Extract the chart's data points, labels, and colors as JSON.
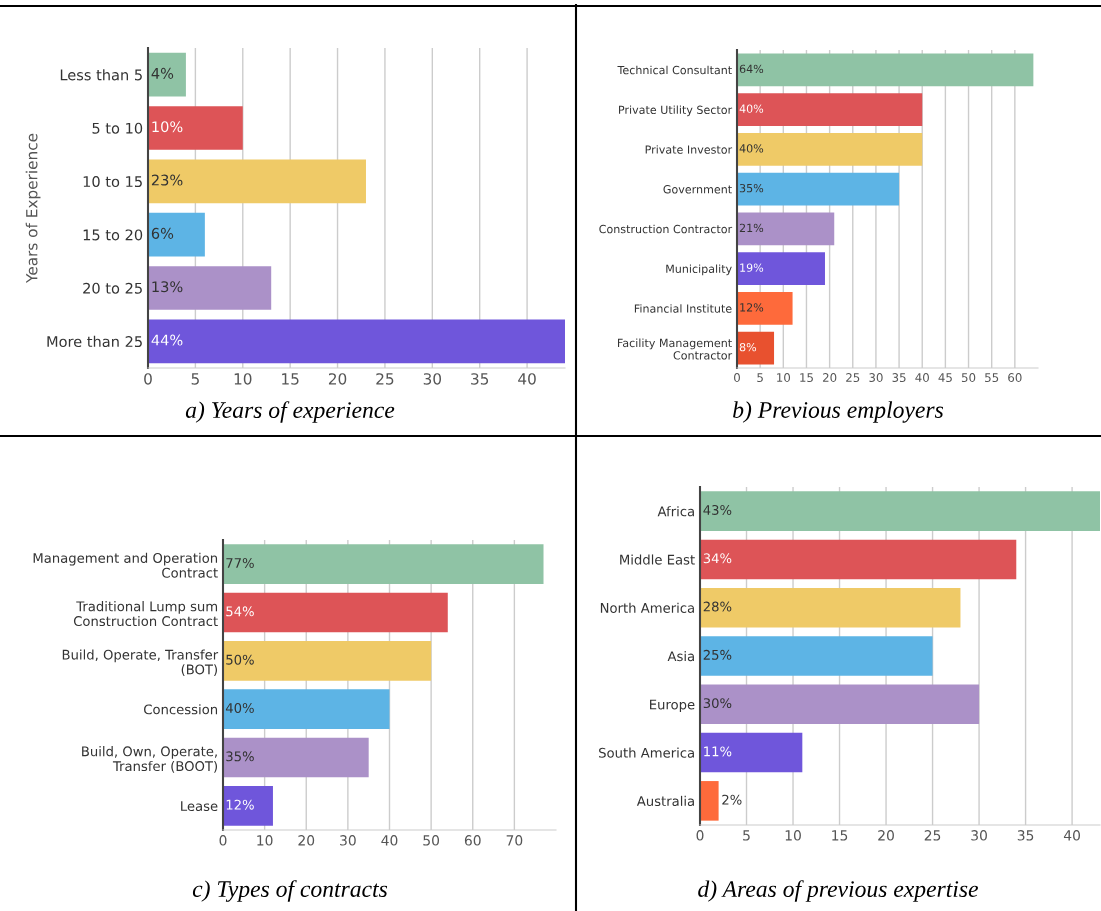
{
  "chart_data": [
    {
      "type": "bar",
      "orientation": "horizontal",
      "title": "a) Years of experience",
      "ylabel": "Years of Experience",
      "categories": [
        "Less than 5",
        "5 to 10",
        "10 to 15",
        "15 to 20",
        "20 to 25",
        "More than 25"
      ],
      "values": [
        4,
        10,
        23,
        6,
        13,
        44
      ],
      "value_labels": [
        "4%",
        "10%",
        "23%",
        "6%",
        "13%",
        "44%"
      ],
      "colors": [
        "#8fc3a5",
        "#dd5457",
        "#efca67",
        "#5db4e5",
        "#ab91c8",
        "#6f56db"
      ],
      "xlim": [
        0,
        44
      ],
      "xticks": [
        0,
        5,
        10,
        15,
        20,
        25,
        30,
        35,
        40
      ],
      "grid": "x",
      "legend": false
    },
    {
      "type": "bar",
      "orientation": "horizontal",
      "title": "b) Previous employers",
      "categories": [
        "Technical Consultant",
        "Private Utility Sector",
        "Private Investor",
        "Government",
        "Construction Contractor",
        "Municipality",
        "Financial Institute",
        "Facility Management\nContractor"
      ],
      "values": [
        64,
        40,
        40,
        35,
        21,
        19,
        12,
        8
      ],
      "value_labels": [
        "64%",
        "40%",
        "40%",
        "35%",
        "21%",
        "19%",
        "12%",
        "8%"
      ],
      "colors": [
        "#8fc3a5",
        "#dd5457",
        "#efca67",
        "#5db4e5",
        "#ab91c8",
        "#6f56db",
        "#fe6a3b",
        "#e8512f"
      ],
      "xlim": [
        0,
        65
      ],
      "xticks": [
        0,
        5,
        10,
        15,
        20,
        25,
        30,
        35,
        40,
        45,
        50,
        55,
        60
      ],
      "grid": "x",
      "legend": false
    },
    {
      "type": "bar",
      "orientation": "horizontal",
      "title": "c) Types of contracts",
      "categories": [
        "Management and Operation\nContract",
        "Traditional Lump sum\nConstruction Contract",
        "Build, Operate, Transfer\n(BOT)",
        "Concession",
        "Build, Own, Operate,\nTransfer (BOOT)",
        "Lease"
      ],
      "values": [
        77,
        54,
        50,
        40,
        35,
        12
      ],
      "value_labels": [
        "77%",
        "54%",
        "50%",
        "40%",
        "35%",
        "12%"
      ],
      "colors": [
        "#8fc3a5",
        "#dd5457",
        "#efca67",
        "#5db4e5",
        "#ab91c8",
        "#6f56db"
      ],
      "xlim": [
        0,
        80
      ],
      "xticks": [
        0,
        10,
        20,
        30,
        40,
        50,
        60,
        70
      ],
      "grid": "x",
      "legend": false
    },
    {
      "type": "bar",
      "orientation": "horizontal",
      "title": "d) Areas of previous expertise",
      "categories": [
        "Africa",
        "Middle East",
        "North America",
        "Asia",
        "Europe",
        "South America",
        "Australia"
      ],
      "values": [
        43,
        34,
        28,
        25,
        30,
        11,
        2
      ],
      "value_labels": [
        "43%",
        "34%",
        "28%",
        "25%",
        "30%",
        "11%",
        "2%"
      ],
      "colors": [
        "#8fc3a5",
        "#dd5457",
        "#efca67",
        "#5db4e5",
        "#ab91c8",
        "#6f56db",
        "#fe6a3b"
      ],
      "xlim": [
        0,
        43
      ],
      "xticks": [
        0,
        5,
        10,
        15,
        20,
        25,
        30,
        35,
        40
      ],
      "grid": "x",
      "legend": false
    }
  ]
}
